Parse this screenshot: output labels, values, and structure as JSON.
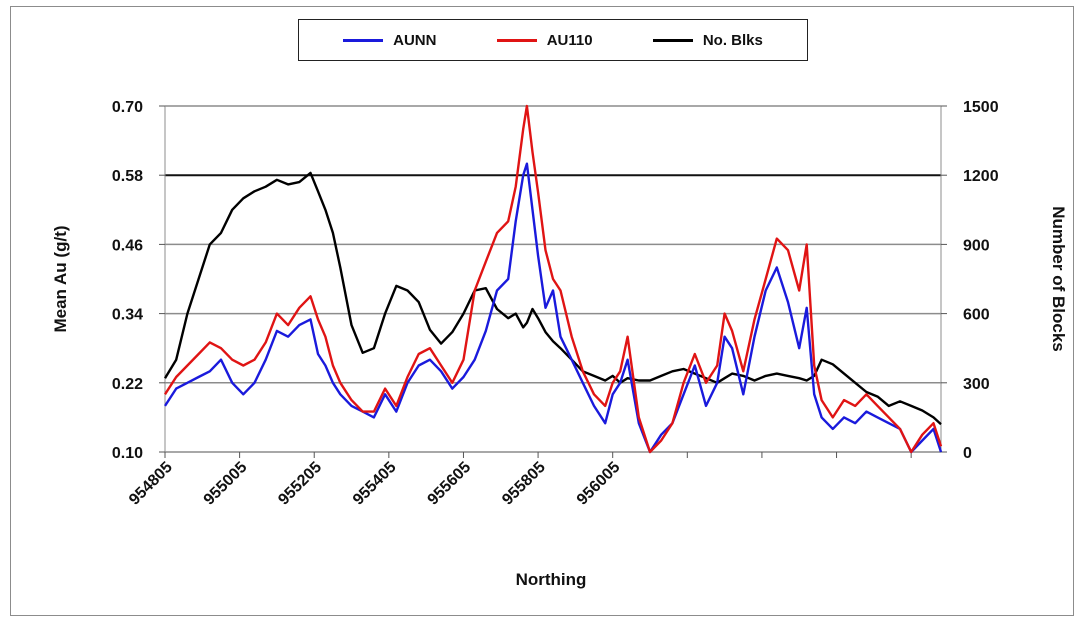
{
  "chart_data": {
    "type": "line",
    "title": "",
    "xlabel": "Northing",
    "ylabel_left": "Mean Au (g/t)",
    "ylabel_right": "Number of Blocks",
    "x_tick_labels": [
      "954805",
      "955005",
      "955205",
      "955405",
      "955605",
      "955805",
      "956005"
    ],
    "x_range": [
      954805,
      956885
    ],
    "ylim_left": [
      0.1,
      0.7
    ],
    "ylim_right": [
      0,
      1500
    ],
    "y_ticks_left": [
      "0.70",
      "0.58",
      "0.46",
      "0.34",
      "0.22",
      "0.10"
    ],
    "y_ticks_right": [
      "1500",
      "1200",
      "900",
      "600",
      "300",
      "0"
    ],
    "grid": "horizontal",
    "legend_position": "top-center",
    "colors": {
      "AUNN": "#1a1adc",
      "AU110": "#e01414",
      "No. Blks": "#000000"
    },
    "series": [
      {
        "name": "AUNN",
        "axis": "left",
        "x": [
          954805,
          954835,
          954865,
          954895,
          954925,
          954955,
          954985,
          955015,
          955045,
          955075,
          955105,
          955135,
          955165,
          955195,
          955215,
          955235,
          955255,
          955275,
          955305,
          955335,
          955365,
          955395,
          955425,
          955455,
          955485,
          955515,
          955545,
          955575,
          955605,
          955635,
          955665,
          955695,
          955725,
          955745,
          955765,
          955775,
          955790,
          955805,
          955825,
          955845,
          955865,
          955895,
          955925,
          955955,
          955985,
          956005,
          956025,
          956045,
          956075,
          956105,
          956135,
          956165,
          956195,
          956225,
          956255,
          956285,
          956305,
          956325,
          956355,
          956385,
          956415,
          956445,
          956475,
          956505,
          956525,
          956545,
          956565,
          956595,
          956625,
          956655,
          956685,
          956715,
          956745,
          956775,
          956805,
          956835,
          956865,
          956885
        ],
        "values": [
          0.18,
          0.21,
          0.22,
          0.23,
          0.24,
          0.26,
          0.22,
          0.2,
          0.22,
          0.26,
          0.31,
          0.3,
          0.32,
          0.33,
          0.27,
          0.25,
          0.22,
          0.2,
          0.18,
          0.17,
          0.16,
          0.2,
          0.17,
          0.22,
          0.25,
          0.26,
          0.24,
          0.21,
          0.23,
          0.26,
          0.31,
          0.38,
          0.4,
          0.5,
          0.58,
          0.6,
          0.52,
          0.44,
          0.35,
          0.38,
          0.3,
          0.26,
          0.22,
          0.18,
          0.15,
          0.2,
          0.22,
          0.26,
          0.15,
          0.1,
          0.13,
          0.15,
          0.2,
          0.25,
          0.18,
          0.22,
          0.3,
          0.28,
          0.2,
          0.3,
          0.38,
          0.42,
          0.36,
          0.28,
          0.35,
          0.2,
          0.16,
          0.14,
          0.16,
          0.15,
          0.17,
          0.16,
          0.15,
          0.14,
          0.1,
          0.12,
          0.14,
          0.1
        ]
      },
      {
        "name": "AU110",
        "axis": "left",
        "x": [
          954805,
          954835,
          954865,
          954895,
          954925,
          954955,
          954985,
          955015,
          955045,
          955075,
          955105,
          955135,
          955165,
          955195,
          955215,
          955235,
          955255,
          955275,
          955305,
          955335,
          955365,
          955395,
          955425,
          955455,
          955485,
          955515,
          955545,
          955575,
          955605,
          955635,
          955665,
          955695,
          955725,
          955745,
          955765,
          955775,
          955790,
          955805,
          955825,
          955845,
          955865,
          955895,
          955925,
          955955,
          955985,
          956005,
          956025,
          956045,
          956075,
          956105,
          956135,
          956165,
          956195,
          956225,
          956255,
          956285,
          956305,
          956325,
          956355,
          956385,
          956415,
          956445,
          956475,
          956505,
          956525,
          956545,
          956565,
          956595,
          956625,
          956655,
          956685,
          956715,
          956745,
          956775,
          956805,
          956835,
          956865,
          956885
        ],
        "values": [
          0.2,
          0.23,
          0.25,
          0.27,
          0.29,
          0.28,
          0.26,
          0.25,
          0.26,
          0.29,
          0.34,
          0.32,
          0.35,
          0.37,
          0.33,
          0.3,
          0.25,
          0.22,
          0.19,
          0.17,
          0.17,
          0.21,
          0.18,
          0.23,
          0.27,
          0.28,
          0.25,
          0.22,
          0.26,
          0.38,
          0.43,
          0.48,
          0.5,
          0.56,
          0.66,
          0.7,
          0.62,
          0.55,
          0.45,
          0.4,
          0.38,
          0.3,
          0.24,
          0.2,
          0.18,
          0.22,
          0.24,
          0.3,
          0.16,
          0.1,
          0.12,
          0.15,
          0.22,
          0.27,
          0.22,
          0.25,
          0.34,
          0.31,
          0.24,
          0.33,
          0.4,
          0.47,
          0.45,
          0.38,
          0.46,
          0.25,
          0.19,
          0.16,
          0.19,
          0.18,
          0.2,
          0.18,
          0.16,
          0.14,
          0.1,
          0.13,
          0.15,
          0.11
        ]
      },
      {
        "name": "No. Blks",
        "axis": "right",
        "x": [
          954805,
          954835,
          954865,
          954895,
          954925,
          954955,
          954985,
          955015,
          955045,
          955075,
          955105,
          955135,
          955165,
          955195,
          955215,
          955235,
          955255,
          955275,
          955305,
          955335,
          955365,
          955395,
          955425,
          955455,
          955485,
          955515,
          955545,
          955575,
          955605,
          955635,
          955665,
          955695,
          955725,
          955745,
          955765,
          955775,
          955790,
          955805,
          955825,
          955845,
          955865,
          955895,
          955925,
          955955,
          955985,
          956005,
          956025,
          956045,
          956075,
          956105,
          956135,
          956165,
          956195,
          956225,
          956255,
          956285,
          956305,
          956325,
          956355,
          956385,
          956415,
          956445,
          956475,
          956505,
          956525,
          956545,
          956565,
          956595,
          956625,
          956655,
          956685,
          956715,
          956745,
          956775,
          956805,
          956835,
          956865,
          956885
        ],
        "values": [
          320,
          400,
          600,
          750,
          900,
          950,
          1050,
          1100,
          1130,
          1150,
          1180,
          1160,
          1170,
          1210,
          1130,
          1050,
          950,
          800,
          550,
          430,
          450,
          600,
          720,
          700,
          650,
          530,
          470,
          520,
          600,
          700,
          710,
          620,
          580,
          600,
          540,
          560,
          620,
          580,
          520,
          480,
          450,
          400,
          350,
          330,
          310,
          330,
          300,
          320,
          310,
          310,
          330,
          350,
          360,
          340,
          320,
          300,
          320,
          340,
          330,
          310,
          330,
          340,
          330,
          320,
          310,
          330,
          400,
          380,
          340,
          300,
          260,
          240,
          200,
          220,
          200,
          180,
          150,
          120
        ]
      }
    ]
  }
}
